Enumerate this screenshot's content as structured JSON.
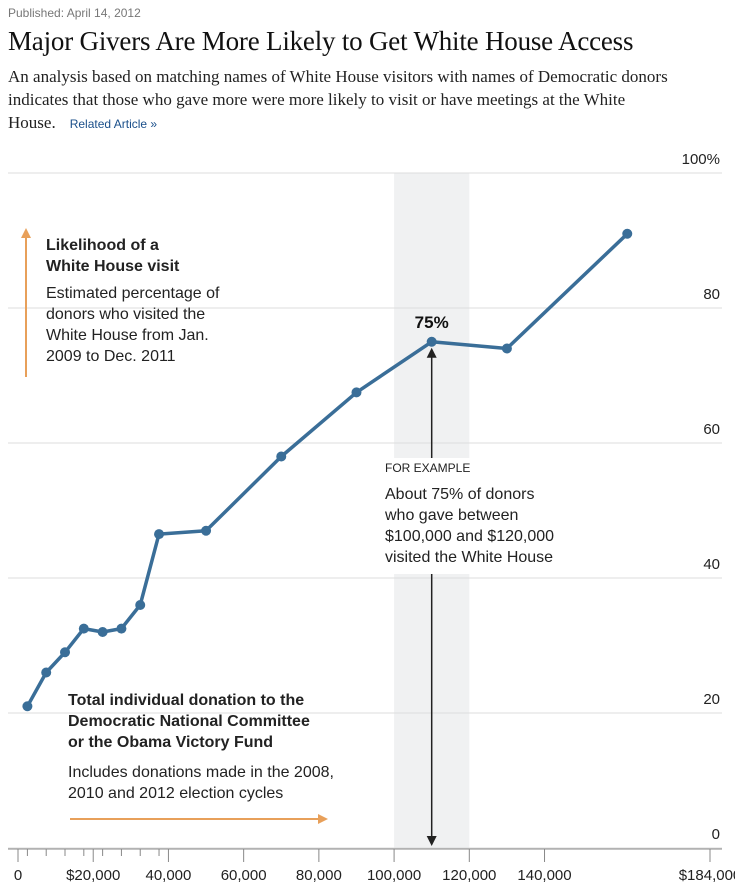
{
  "header": {
    "published": "Published: April 14, 2012",
    "title": "Major Givers Are More Likely to Get White House Access",
    "subtitle": "An analysis based on matching names of White House visitors with names of Democratic donors indicates that those who gave more were more likely to visit or have meetings at the White House.",
    "related_link": "Related Article »"
  },
  "y_annotation": {
    "title_line1": "Likelihood of a",
    "title_line2": "White House visit",
    "body_lines": [
      "Estimated percentage of",
      "donors who visited the",
      "White House from Jan.",
      "2009 to Dec. 2011"
    ]
  },
  "x_annotation": {
    "title_lines": [
      "Total individual donation to the",
      "Democratic National Committee",
      "or the Obama Victory Fund"
    ],
    "body_lines": [
      "Includes donations made in the 2008,",
      "2010 and 2012 election cycles"
    ]
  },
  "example": {
    "kicker": "FOR EXAMPLE",
    "body_lines": [
      "About 75% of donors",
      "who gave between",
      "$100,000 and $120,000",
      "visited the White House"
    ],
    "value_label": "75%",
    "band": [
      100000,
      120000
    ],
    "point_x": 110000,
    "point_y": 75
  },
  "colors": {
    "line": "#3a6e98",
    "arrow": "#e8a05a",
    "band": "#f0f1f2",
    "grid": "#dddddd"
  },
  "chart_data": {
    "type": "line",
    "xlabel": "Total individual donation to the Democratic National Committee or the Obama Victory Fund",
    "ylabel": "Likelihood of a White House visit",
    "xlim": [
      0,
      184000
    ],
    "ylim": [
      0,
      100
    ],
    "y_ticks": [
      {
        "value": 100,
        "label": "100%"
      },
      {
        "value": 80,
        "label": "80"
      },
      {
        "value": 60,
        "label": "60"
      },
      {
        "value": 40,
        "label": "40"
      },
      {
        "value": 20,
        "label": "20"
      },
      {
        "value": 0,
        "label": "0"
      }
    ],
    "x_ticks": [
      {
        "value": 0,
        "label": "0"
      },
      {
        "value": 20000,
        "label": "$20,000"
      },
      {
        "value": 40000,
        "label": "40,000"
      },
      {
        "value": 60000,
        "label": "60,000"
      },
      {
        "value": 80000,
        "label": "80,000"
      },
      {
        "value": 100000,
        "label": "100,000"
      },
      {
        "value": 120000,
        "label": "120,000"
      },
      {
        "value": 140000,
        "label": "140,000"
      },
      {
        "value": 184000,
        "label": "$184,000"
      }
    ],
    "minor_x_ticks": [
      2500,
      7500,
      12500,
      17500,
      22500,
      27500,
      32500,
      37500
    ],
    "grid": true,
    "points": [
      {
        "x": 2500,
        "y": 21
      },
      {
        "x": 7500,
        "y": 26
      },
      {
        "x": 12500,
        "y": 29
      },
      {
        "x": 17500,
        "y": 32.5
      },
      {
        "x": 22500,
        "y": 32
      },
      {
        "x": 27500,
        "y": 32.5
      },
      {
        "x": 32500,
        "y": 36
      },
      {
        "x": 37500,
        "y": 46.5
      },
      {
        "x": 50000,
        "y": 47
      },
      {
        "x": 70000,
        "y": 58
      },
      {
        "x": 90000,
        "y": 67.5
      },
      {
        "x": 110000,
        "y": 75
      },
      {
        "x": 130000,
        "y": 74
      },
      {
        "x": 162000,
        "y": 91
      }
    ]
  }
}
